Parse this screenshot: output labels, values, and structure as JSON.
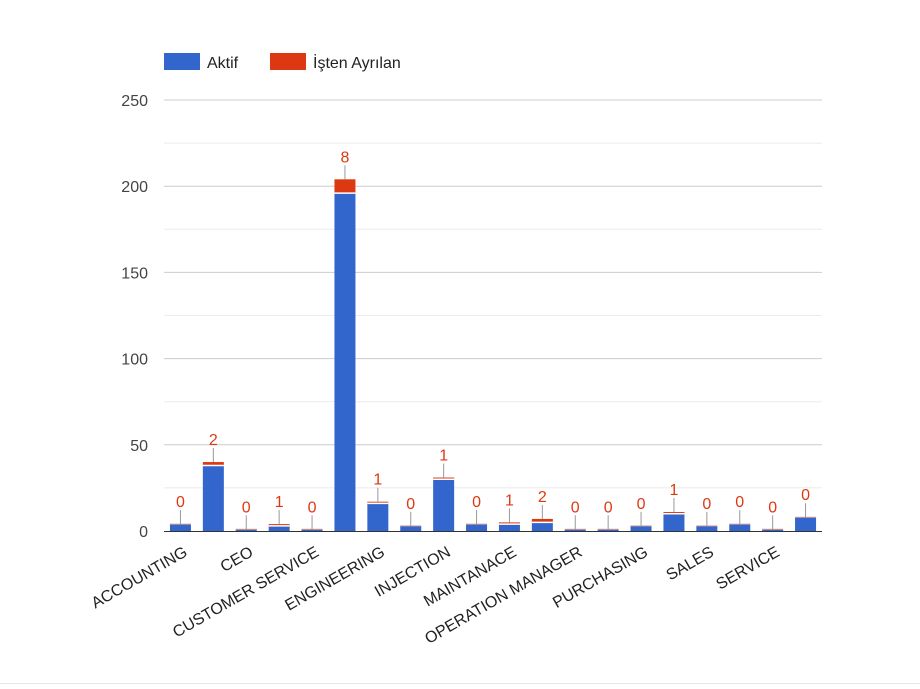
{
  "chart_data": {
    "type": "bar",
    "stacked": true,
    "legend_position": "top-left",
    "grid": true,
    "ylim": [
      0,
      250
    ],
    "yticks": [
      0,
      50,
      100,
      150,
      200,
      250
    ],
    "categories": [
      "ACCOUNTING",
      "",
      "CEO",
      "",
      "CUSTOMER SERVICE",
      "",
      "ENGINEERING",
      "",
      "INJECTION",
      "",
      "MAINTANACE",
      "",
      "OPERATION MANAGER",
      "",
      "PURCHASING",
      "",
      "SALES",
      "",
      "SERVICE",
      ""
    ],
    "series": [
      {
        "name": "Aktif",
        "color": "#3366cc",
        "values": [
          4,
          38,
          1,
          3,
          1,
          196,
          16,
          3,
          30,
          4,
          4,
          5,
          1,
          1,
          3,
          10,
          3,
          4,
          1,
          8
        ]
      },
      {
        "name": "İşten Ayrılan",
        "color": "#dc3912",
        "values": [
          0,
          2,
          0,
          1,
          0,
          8,
          1,
          0,
          1,
          0,
          1,
          2,
          0,
          0,
          0,
          1,
          0,
          0,
          0,
          0
        ]
      }
    ],
    "annotations": [
      "0",
      "2",
      "0",
      "1",
      "0",
      "8",
      "1",
      "0",
      "1",
      "0",
      "1",
      "2",
      "0",
      "0",
      "0",
      "1",
      "0",
      "0",
      "0",
      "0"
    ]
  }
}
